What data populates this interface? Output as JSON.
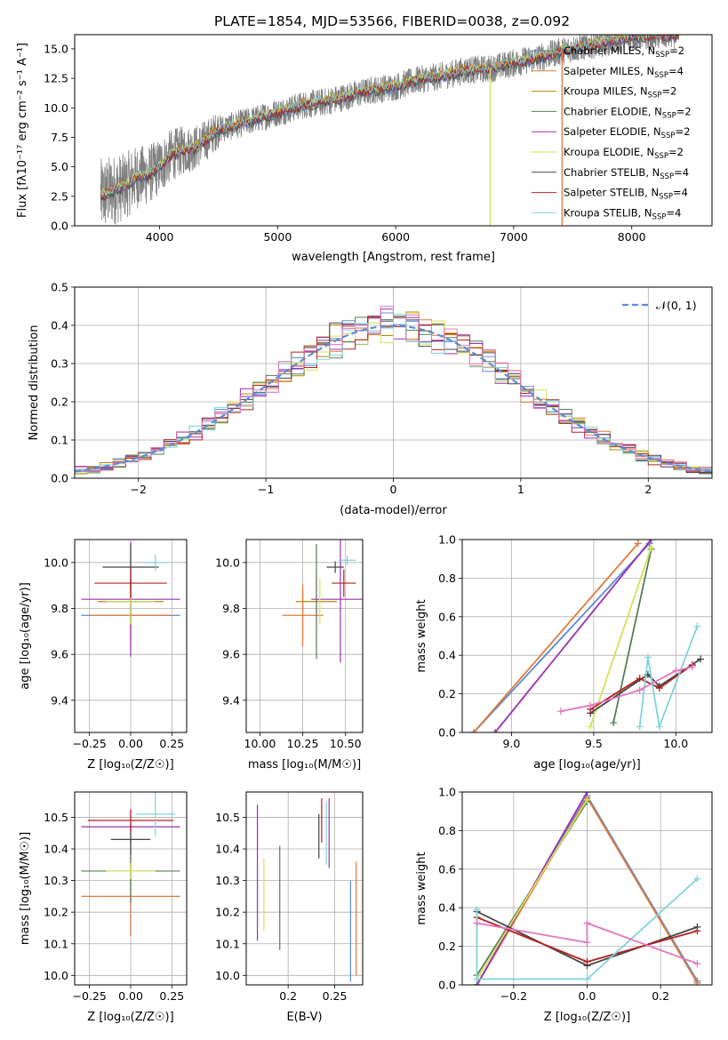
{
  "figure": {
    "title": "PLATE=1854, MJD=53566, FIBERID=0038, z=0.092"
  },
  "series_styles": [
    {
      "name": "Chabrier MILES, N$_{SSP}$=2",
      "label_main": "Chabrier MILES, N",
      "label_sub": "SSP",
      "label_tail": "=2",
      "color": "#5b8bd6"
    },
    {
      "name": "Salpeter MILES, N$_{SSP}$=4",
      "label_main": "Salpeter MILES, N",
      "label_sub": "SSP",
      "label_tail": "=4",
      "color": "#e07b39"
    },
    {
      "name": "Kroupa MILES, N$_{SSP}$=2",
      "label_main": "Kroupa MILES, N",
      "label_sub": "SSP",
      "label_tail": "=2",
      "color": "#b8860b"
    },
    {
      "name": "Chabrier ELODIE, N$_{SSP}$=2",
      "label_main": "Chabrier ELODIE, N",
      "label_sub": "SSP",
      "label_tail": "=2",
      "color": "#5a7d5a"
    },
    {
      "name": "Salpeter ELODIE, N$_{SSP}$=2",
      "label_main": "Salpeter ELODIE, N",
      "label_sub": "SSP",
      "label_tail": "=2",
      "color": "#9b30b0"
    },
    {
      "name": "Kroupa ELODIE, N$_{SSP}$=2",
      "label_main": "Kroupa ELODIE, N",
      "label_sub": "SSP",
      "label_tail": "=2",
      "color": "#d4e157"
    },
    {
      "name": "Chabrier STELIB, N$_{SSP}$=4",
      "label_main": "Chabrier STELIB, N",
      "label_sub": "SSP",
      "label_tail": "=4",
      "color": "#444444"
    },
    {
      "name": "Salpeter STELIB, N$_{SSP}$=4",
      "label_main": "Salpeter STELIB, N",
      "label_sub": "SSP",
      "label_tail": "=4",
      "color": "#b22222"
    },
    {
      "name": "Kroupa STELIB, N$_{SSP}$=4",
      "label_main": "Kroupa STELIB, N",
      "label_sub": "SSP",
      "label_tail": "=4",
      "color": "#7fd3db"
    }
  ],
  "extra_colors": {
    "salpeter_elodie_pink": "#e377c2",
    "data_grey": "#7f7f7f",
    "normal_dashed": "#5b8bd6"
  },
  "chart_data": [
    {
      "id": "spectrum",
      "type": "line",
      "xlabel": "wavelength [Angstrom, rest frame]",
      "ylabel_main": "Flux [f",
      "ylabel_rest": " erg cm",
      "ylabel_units": "Flux [fλ10⁻¹⁷ erg cm⁻² s⁻¹ A⁻¹]",
      "xlim": [
        3280,
        8680
      ],
      "ylim": [
        0,
        16.2
      ],
      "xticks": [
        4000,
        5000,
        6000,
        7000,
        8000
      ],
      "yticks": [
        0.0,
        2.5,
        5.0,
        7.5,
        10.0,
        12.5,
        15.0
      ],
      "continuum": {
        "x": [
          3500,
          3600,
          3700,
          3800,
          3900,
          4000,
          4100,
          4200,
          4300,
          4400,
          4500,
          4600,
          4800,
          5000,
          5200,
          5400,
          5600,
          5800,
          6000,
          6200,
          6400,
          6600,
          6800,
          7000,
          7200,
          7400,
          7600,
          7800,
          8000,
          8200,
          8400
        ],
        "y": [
          2.5,
          3.0,
          3.3,
          4.1,
          4.3,
          5.0,
          6.0,
          6.4,
          6.6,
          7.3,
          8.2,
          8.4,
          9.0,
          9.6,
          10.2,
          10.5,
          11.0,
          11.5,
          11.8,
          12.4,
          12.7,
          13.2,
          13.3,
          13.8,
          14.2,
          14.8,
          15.2,
          15.6,
          16.0,
          16.1,
          16.2
        ]
      },
      "features": [
        {
          "x": 6800,
          "dip_to": 0.0,
          "color_index": 5
        },
        {
          "x": 7410,
          "dip_to": 0.0,
          "color_index": 1
        }
      ]
    },
    {
      "id": "residuals",
      "type": "bar",
      "xlabel": "(data-model)/error",
      "ylabel": "Normed distribution",
      "xlim": [
        -2.5,
        2.5
      ],
      "ylim": [
        0,
        0.5
      ],
      "xticks": [
        -2,
        -1,
        0,
        1,
        2
      ],
      "yticks": [
        0.0,
        0.1,
        0.2,
        0.3,
        0.4,
        0.5
      ],
      "bin_width": 0.1,
      "legend_label": "𝒩(0, 1)",
      "grid": true,
      "histogram_step": true
    },
    {
      "id": "age_vs_Z",
      "type": "scatter",
      "xlabel": "Z [log₁₀(Z/Z☉)]",
      "ylabel": "age  [log₁₀(age/yr)]",
      "xlim": [
        -0.34,
        0.34
      ],
      "ylim": [
        9.26,
        10.1
      ],
      "xticks": [
        -0.2,
        -0.1,
        0.0,
        0.1,
        0.2,
        0.3
      ],
      "xticklabels": [
        "−0.25",
        "0.00",
        "0.25"
      ],
      "xticks_shown": [
        -0.25,
        0.0,
        0.25
      ],
      "yticks": [
        9.4,
        9.6,
        9.8,
        10.0
      ],
      "points": [
        {
          "ci": 0,
          "x": 0.0,
          "y": 9.77,
          "xerr": 0.3,
          "yerr": 0.22
        },
        {
          "ci": 1,
          "x": 0.0,
          "y": 9.77,
          "xerr": 0.25,
          "yerr": 0.28
        },
        {
          "ci": 2,
          "x": 0.0,
          "y": 9.83,
          "xerr": 0.2,
          "yerr": 0.22
        },
        {
          "ci": 3,
          "x": 0.0,
          "y": 9.83,
          "xerr": 0.15,
          "yerr": 0.18
        },
        {
          "ci": 4,
          "x": 0.0,
          "y": 9.84,
          "xerr": 0.3,
          "yerr": 0.5
        },
        {
          "ci": 5,
          "x": 0.0,
          "y": 9.83,
          "xerr": 0.15,
          "yerr": 0.2
        },
        {
          "ci": 6,
          "x": 0.0,
          "y": 9.98,
          "xerr": 0.17,
          "yerr": 0.2
        },
        {
          "ci": 7,
          "x": 0.0,
          "y": 9.91,
          "xerr": 0.22,
          "yerr": 0.13
        },
        {
          "ci": 8,
          "x": 0.15,
          "y": 10.0,
          "xerr": 0.07,
          "yerr": 0.07
        }
      ]
    },
    {
      "id": "age_vs_mass",
      "type": "scatter",
      "xlabel": "mass [log₁₀(M/M☉)]",
      "xlim": [
        9.92,
        10.6
      ],
      "ylim": [
        9.26,
        10.1
      ],
      "xticks": [
        10.0,
        10.25,
        10.5
      ],
      "xticklabels": [
        "10.00",
        "10.25",
        "10.50"
      ],
      "yticks": [
        9.4,
        9.6,
        9.8,
        10.0
      ],
      "points": [
        {
          "ci": 0,
          "x": 10.25,
          "y": 9.77,
          "xerr": 0.0,
          "yerr": 0.22
        },
        {
          "ci": 1,
          "x": 10.25,
          "y": 9.77,
          "xerr": 0.12,
          "yerr": 0.27
        },
        {
          "ci": 2,
          "x": 10.33,
          "y": 9.83,
          "xerr": 0.12,
          "yerr": 0.22
        },
        {
          "ci": 3,
          "x": 10.33,
          "y": 9.83,
          "xerr": 0.0,
          "yerr": 0.5
        },
        {
          "ci": 4,
          "x": 10.47,
          "y": 9.84,
          "xerr": 0.17,
          "yerr": 0.55
        },
        {
          "ci": 5,
          "x": 10.35,
          "y": 9.83,
          "xerr": 0.0,
          "yerr": 0.2
        },
        {
          "ci": 6,
          "x": 10.44,
          "y": 9.98,
          "xerr": 0.05,
          "yerr": 0.05
        },
        {
          "ci": 7,
          "x": 10.49,
          "y": 9.91,
          "xerr": 0.07,
          "yerr": 0.12
        },
        {
          "ci": 8,
          "x": 10.51,
          "y": 10.01,
          "xerr": 0.05,
          "yerr": 0.04
        }
      ]
    },
    {
      "id": "weight_vs_age",
      "type": "line",
      "xlabel": "age  [log₁₀(age/yr)]",
      "ylabel": "mass weight",
      "xlim": [
        8.7,
        10.22
      ],
      "ylim": [
        0,
        1.0
      ],
      "xticks": [
        9.0,
        9.5,
        10.0
      ],
      "xticklabels": [
        "9.0",
        "9.5",
        "10.0"
      ],
      "yticks": [
        0.0,
        0.2,
        0.4,
        0.6,
        0.8,
        1.0
      ],
      "series": [
        {
          "ci": 0,
          "x": [
            8.77,
            9.84
          ],
          "y": [
            0.0,
            0.98
          ]
        },
        {
          "ci": 1,
          "x": [
            8.77,
            9.77
          ],
          "y": [
            0.0,
            0.98
          ]
        },
        {
          "ci": 3,
          "x": [
            9.62,
            9.85
          ],
          "y": [
            0.05,
            0.95
          ]
        },
        {
          "ci": 4,
          "x": [
            8.9,
            9.85
          ],
          "y": [
            0.0,
            1.0
          ]
        },
        {
          "ci": 5,
          "x": [
            9.48,
            9.85
          ],
          "y": [
            0.03,
            0.96
          ]
        },
        {
          "ci": 6,
          "x": [
            9.48,
            9.83,
            9.9,
            10.15
          ],
          "y": [
            0.1,
            0.3,
            0.24,
            0.38
          ]
        },
        {
          "ci": 7,
          "x": [
            9.48,
            9.78,
            9.9,
            10.1
          ],
          "y": [
            0.12,
            0.28,
            0.23,
            0.35
          ]
        },
        {
          "ci": 8,
          "x": [
            9.78,
            9.83,
            9.9,
            10.13
          ],
          "y": [
            0.03,
            0.39,
            0.03,
            0.55
          ]
        },
        {
          "pink": true,
          "x": [
            9.3,
            9.48,
            9.78,
            10.0,
            10.1
          ],
          "y": [
            0.11,
            0.14,
            0.22,
            0.32,
            0.34
          ]
        }
      ]
    },
    {
      "id": "mass_vs_Z",
      "type": "scatter",
      "xlabel": "Z [log₁₀(Z/Z☉)]",
      "ylabel": "mass [log₁₀(M/M☉)]",
      "xlim": [
        -0.34,
        0.34
      ],
      "ylim": [
        9.97,
        10.58
      ],
      "xticks_shown": [
        -0.25,
        0.0,
        0.25
      ],
      "xticklabels": [
        "−0.25",
        "0.00",
        "0.25"
      ],
      "yticks": [
        10.0,
        10.1,
        10.2,
        10.3,
        10.4,
        10.5
      ],
      "points": [
        {
          "ci": 0,
          "x": 0.0,
          "y": 10.25,
          "xerr": 0.0,
          "yerr": 0.25
        },
        {
          "ci": 1,
          "x": 0.0,
          "y": 10.25,
          "xerr": 0.3,
          "yerr": 0.25
        },
        {
          "ci": 2,
          "x": 0.0,
          "y": 10.33,
          "xerr": 0.0,
          "yerr": 0.05
        },
        {
          "ci": 3,
          "x": 0.0,
          "y": 10.33,
          "xerr": 0.3,
          "yerr": 0.2
        },
        {
          "ci": 4,
          "x": 0.0,
          "y": 10.47,
          "xerr": 0.3,
          "yerr": 0.1
        },
        {
          "ci": 5,
          "x": 0.0,
          "y": 10.33,
          "xerr": 0.15,
          "yerr": 0.05
        },
        {
          "ci": 6,
          "x": 0.0,
          "y": 10.43,
          "xerr": 0.12,
          "yerr": 0.1
        },
        {
          "ci": 7,
          "x": 0.0,
          "y": 10.49,
          "xerr": 0.26,
          "yerr": 0.07
        },
        {
          "ci": 8,
          "x": 0.15,
          "y": 10.51,
          "xerr": 0.12,
          "yerr": 0.14
        }
      ]
    },
    {
      "id": "mass_vs_ebv",
      "type": "scatter",
      "xlabel": "E(B-V)",
      "xlim": [
        0.155,
        0.28
      ],
      "ylim": [
        9.97,
        10.58
      ],
      "xticks": [
        0.2,
        0.25
      ],
      "yticks": [
        10.0,
        10.1,
        10.2,
        10.3,
        10.4,
        10.5
      ],
      "bars": [
        {
          "ci": 4,
          "x": 0.167,
          "y0": 10.11,
          "y1": 10.54
        },
        {
          "ci": 5,
          "x": 0.174,
          "y0": 10.14,
          "y1": 10.37
        },
        {
          "ci": 3,
          "x": 0.191,
          "y0": 10.08,
          "y1": 10.41
        },
        {
          "ci": 6,
          "x": 0.233,
          "y0": 10.37,
          "y1": 10.51
        },
        {
          "ci": 7,
          "x": 0.236,
          "y0": 10.42,
          "y1": 10.56
        },
        {
          "ci": 8,
          "x": 0.241,
          "y0": 10.35,
          "y1": 10.55
        },
        {
          "ci": 4,
          "x": 0.244,
          "y0": 10.34,
          "y1": 10.56
        },
        {
          "ci": 0,
          "x": 0.267,
          "y0": 9.98,
          "y1": 10.3
        },
        {
          "ci": 1,
          "x": 0.273,
          "y0": 10.0,
          "y1": 10.36
        }
      ]
    },
    {
      "id": "weight_vs_Z",
      "type": "line",
      "xlabel": "Z [log₁₀(Z/Z☉)]",
      "ylabel": "mass weight",
      "xlim": [
        -0.34,
        0.34
      ],
      "ylim": [
        0,
        1.0
      ],
      "xticks": [
        -0.2,
        0.0,
        0.2
      ],
      "xticklabels": [
        "−0.2",
        "0.0",
        "0.2"
      ],
      "yticks": [
        0.0,
        0.2,
        0.4,
        0.6,
        0.8,
        1.0
      ],
      "series": [
        {
          "ci": 0,
          "x": [
            -0.3,
            0.0,
            0.3
          ],
          "y": [
            0.0,
            0.98,
            0.02
          ]
        },
        {
          "ci": 1,
          "x": [
            -0.3,
            0.0,
            0.3
          ],
          "y": [
            0.0,
            0.97,
            0.01
          ]
        },
        {
          "ci": 3,
          "x": [
            -0.3,
            0.0
          ],
          "y": [
            0.05,
            0.95
          ]
        },
        {
          "ci": 4,
          "x": [
            -0.3,
            0.0
          ],
          "y": [
            0.0,
            1.0
          ]
        },
        {
          "ci": 5,
          "x": [
            -0.3,
            0.0
          ],
          "y": [
            0.03,
            0.96
          ]
        },
        {
          "ci": 6,
          "x": [
            -0.3,
            0.0,
            0.3
          ],
          "y": [
            0.38,
            0.1,
            0.3
          ]
        },
        {
          "ci": 7,
          "x": [
            -0.3,
            0.0,
            0.3
          ],
          "y": [
            0.35,
            0.12,
            0.28
          ]
        },
        {
          "ci": 8,
          "x": [
            -0.3,
            -0.3,
            0.0,
            0.3
          ],
          "y": [
            0.39,
            0.03,
            0.03,
            0.55
          ]
        },
        {
          "pink": true,
          "x": [
            -0.3,
            0.0,
            0.0,
            0.3
          ],
          "y": [
            0.32,
            0.22,
            0.32,
            0.11
          ]
        }
      ]
    }
  ]
}
